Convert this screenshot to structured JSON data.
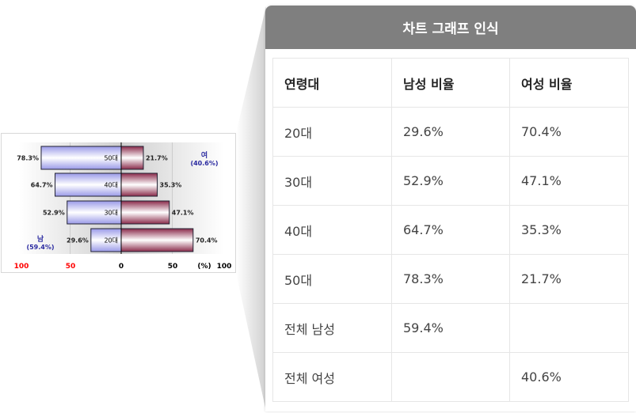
{
  "panel": {
    "title": "차트 그래프 인식"
  },
  "table": {
    "headers": [
      "연령대",
      "남성 비율",
      "여성 비율"
    ],
    "rows": [
      [
        "20대",
        "29.6%",
        "70.4%"
      ],
      [
        "30대",
        "52.9%",
        "47.1%"
      ],
      [
        "40대",
        "64.7%",
        "35.3%"
      ],
      [
        "50대",
        "78.3%",
        "21.7%"
      ],
      [
        "전체 남성",
        "59.4%",
        ""
      ],
      [
        "전체 여성",
        "",
        "40.6%"
      ]
    ]
  },
  "chart_data": {
    "type": "bar",
    "orientation": "horizontal-diverging",
    "categories": [
      "50대",
      "40대",
      "30대",
      "20대"
    ],
    "series": [
      {
        "name": "남",
        "total_label": "(59.4%)",
        "values": [
          78.3,
          64.7,
          52.9,
          29.6
        ],
        "labels": [
          "78.3%",
          "64.7%",
          "52.9%",
          "29.6%"
        ],
        "color": "#9a9ae8",
        "side": "left"
      },
      {
        "name": "여",
        "total_label": "(40.6%)",
        "values": [
          21.7,
          35.3,
          47.1,
          70.4
        ],
        "labels": [
          "21.7%",
          "35.3%",
          "47.1%",
          "70.4%"
        ],
        "color": "#8a2a4a",
        "side": "right"
      }
    ],
    "xticks": [
      {
        "label": "100",
        "value": -100,
        "color": "#ff0000"
      },
      {
        "label": "50",
        "value": -50,
        "color": "#ff0000"
      },
      {
        "label": "0",
        "value": 0,
        "color": "#000000"
      },
      {
        "label": "50",
        "value": 50,
        "color": "#000000"
      },
      {
        "label": "100",
        "value": 100,
        "color": "#000000"
      }
    ],
    "unit_label": "(%)",
    "xlim": [
      -100,
      100
    ],
    "grid": true
  }
}
